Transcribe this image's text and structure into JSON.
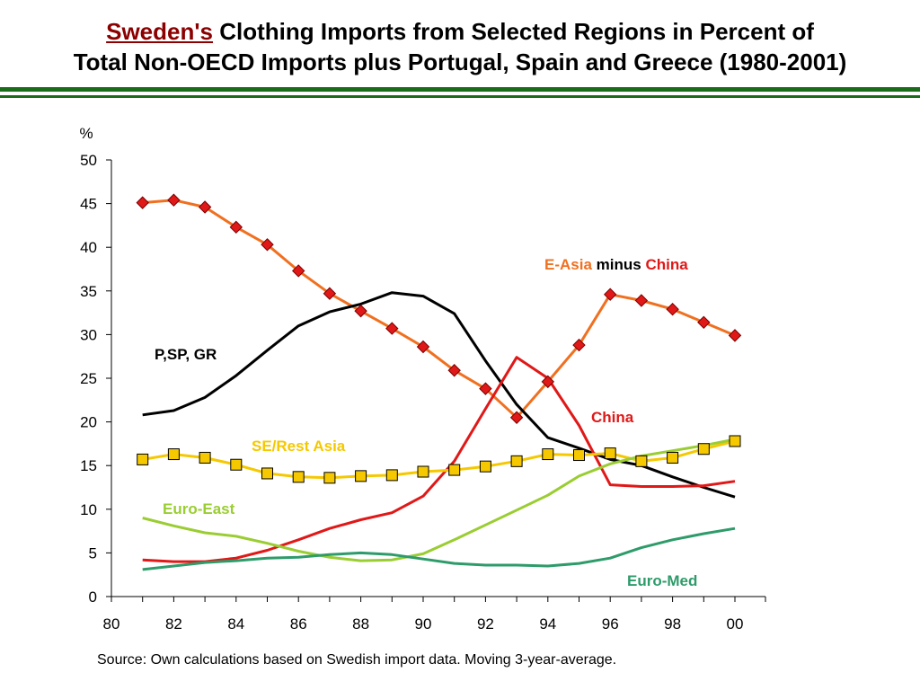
{
  "title": {
    "emph": "Sweden's",
    "line1_rest": " Clothing Imports from Selected Regions in Percent of",
    "line2": "Total Non-OECD Imports plus Portugal, Spain and Greece (1980-2001)"
  },
  "colors": {
    "rule": "#1a6b1a",
    "e_asia": "#f07020",
    "china": "#e01818",
    "psp_gr": "#000000",
    "se_rest_asia": "#f5c800",
    "euro_east": "#9acd32",
    "euro_med": "#2e9b6a",
    "marker_diamond": "#e01818",
    "marker_square": "#f5c800"
  },
  "chart_data": {
    "type": "line",
    "title": "Sweden's Clothing Imports from Selected Regions in Percent of Total Non-OECD Imports plus Portugal, Spain and Greece (1980-2001)",
    "ylabel": "%",
    "xlabel": "",
    "ylim": [
      0,
      50
    ],
    "xlim": [
      1980,
      2000
    ],
    "yticks": [
      0,
      5,
      10,
      15,
      20,
      25,
      30,
      35,
      40,
      45,
      50
    ],
    "xticks": [
      1980,
      1982,
      1984,
      1986,
      1988,
      1990,
      1992,
      1994,
      1996,
      1998,
      2000
    ],
    "xtick_labels": [
      "80",
      "82",
      "84",
      "86",
      "88",
      "90",
      "92",
      "94",
      "96",
      "98",
      "00"
    ],
    "x": [
      1981,
      1982,
      1983,
      1984,
      1985,
      1986,
      1987,
      1988,
      1989,
      1990,
      1991,
      1992,
      1993,
      1994,
      1995,
      1996,
      1997,
      1998,
      1999,
      2000
    ],
    "series": [
      {
        "key": "e_asia",
        "values": [
          45.1,
          45.4,
          44.6,
          42.3,
          40.3,
          37.3,
          34.7,
          32.7,
          30.7,
          28.6,
          25.9,
          23.8,
          20.5,
          24.6,
          28.8,
          34.6,
          33.9,
          32.9,
          31.4,
          29.9
        ]
      },
      {
        "key": "psp_gr",
        "values": [
          20.8,
          21.3,
          22.8,
          25.3,
          28.2,
          31.0,
          32.6,
          33.5,
          34.8,
          34.4,
          32.4,
          27.0,
          22.0,
          18.2,
          17.0,
          15.7,
          15.0,
          13.7,
          12.5,
          11.4
        ]
      },
      {
        "key": "china",
        "values": [
          4.2,
          4.0,
          4.0,
          4.4,
          5.3,
          6.5,
          7.8,
          8.8,
          9.6,
          11.5,
          15.5,
          21.5,
          27.4,
          25.0,
          19.6,
          12.8,
          12.6,
          12.6,
          12.7,
          13.2
        ]
      },
      {
        "key": "se_rest_asia",
        "values": [
          15.7,
          16.3,
          15.9,
          15.1,
          14.1,
          13.7,
          13.6,
          13.8,
          13.9,
          14.3,
          14.5,
          14.9,
          15.5,
          16.3,
          16.2,
          16.4,
          15.5,
          15.9,
          16.9,
          17.8
        ]
      },
      {
        "key": "euro_east",
        "values": [
          9.0,
          8.1,
          7.3,
          6.9,
          6.1,
          5.2,
          4.5,
          4.1,
          4.2,
          4.9,
          6.5,
          8.2,
          9.9,
          11.6,
          13.8,
          15.2,
          16.1,
          16.7,
          17.3,
          18.0
        ]
      },
      {
        "key": "euro_med",
        "values": [
          3.1,
          3.5,
          3.9,
          4.1,
          4.4,
          4.5,
          4.8,
          5.0,
          4.8,
          4.3,
          3.8,
          3.6,
          3.6,
          3.5,
          3.8,
          4.4,
          5.6,
          6.5,
          7.2,
          7.8
        ]
      }
    ],
    "labels": {
      "e_asia": "E-Asia",
      "minus": " minus ",
      "china_in_label": "China",
      "psp_gr": "P,SP, GR",
      "china": "China",
      "se_rest_asia": "SE/Rest Asia",
      "euro_east": "Euro-East",
      "euro_med": "Euro-Med"
    },
    "grid": false,
    "legend": "none (direct labels)"
  },
  "source": "Source: Own calculations based on Swedish import data. Moving 3-year-average."
}
